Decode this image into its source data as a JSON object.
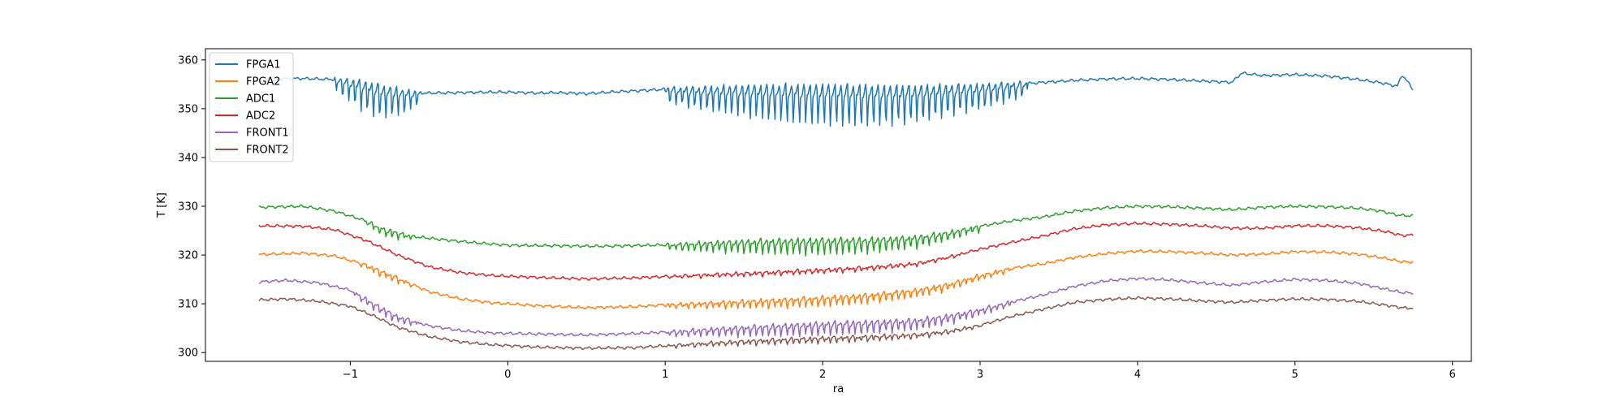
{
  "chart_data": {
    "type": "line",
    "title": "",
    "xlabel": "ra",
    "ylabel": "T [K]",
    "xlim": [
      -1.92,
      6.12
    ],
    "ylim": [
      298.2,
      362.3
    ],
    "xticks": [
      -1,
      0,
      1,
      2,
      3,
      4,
      5,
      6
    ],
    "yticks": [
      300,
      310,
      320,
      330,
      340,
      350,
      360
    ],
    "grid": false,
    "legend_position": "top-left",
    "series": [
      {
        "name": "FPGA1",
        "color": "#1f77b4",
        "x": [
          -1.58,
          -1.45,
          -1.3,
          -1.1,
          -0.95,
          -0.8,
          -0.65,
          -0.5,
          -0.3,
          -0.1,
          0,
          0.2,
          0.3,
          0.5,
          0.7,
          0.9,
          1.0,
          1.2,
          1.5,
          1.8,
          2.0,
          2.2,
          2.4,
          2.6,
          2.8,
          3.0,
          3.2,
          3.4,
          3.6,
          3.8,
          4.0,
          4.2,
          4.4,
          4.6,
          4.66,
          4.8,
          5.0,
          5.2,
          5.4,
          5.55,
          5.65,
          5.68,
          5.75
        ],
        "y": [
          355.7,
          356.1,
          356.2,
          356.0,
          355.2,
          354.0,
          353.3,
          353.2,
          353.3,
          353.4,
          353.4,
          353.2,
          353.3,
          353.1,
          353.5,
          353.8,
          354.0,
          353.9,
          354.0,
          353.9,
          353.9,
          353.8,
          353.7,
          353.8,
          354.1,
          354.4,
          354.9,
          355.4,
          355.8,
          356.1,
          356.2,
          356.0,
          355.7,
          355.4,
          357.3,
          356.8,
          357.0,
          356.7,
          356.0,
          355.3,
          354.6,
          357.0,
          354.0
        ],
        "oscillation": [
          [
            -1.1,
            -0.55,
            4.0
          ],
          [
            1.0,
            3.3,
            5.0
          ]
        ]
      },
      {
        "name": "FPGA2",
        "color": "#ff7f0e",
        "x": [
          -1.58,
          -1.3,
          -1.1,
          -0.9,
          -0.7,
          -0.5,
          -0.3,
          -0.1,
          0.2,
          0.5,
          0.8,
          1.0,
          1.3,
          1.6,
          2.0,
          2.3,
          2.6,
          2.8,
          3.0,
          3.2,
          3.4,
          3.6,
          3.8,
          4.0,
          4.2,
          4.4,
          4.6,
          4.8,
          5.0,
          5.2,
          5.4,
          5.58,
          5.68,
          5.75
        ],
        "y": [
          320.1,
          320.4,
          319.8,
          318.0,
          315.3,
          312.5,
          311.0,
          310.2,
          309.6,
          309.2,
          309.4,
          309.8,
          310.2,
          310.6,
          311.2,
          311.8,
          312.8,
          314.0,
          315.8,
          317.3,
          318.2,
          319.5,
          320.3,
          320.8,
          320.7,
          320.4,
          320.0,
          320.2,
          320.7,
          320.6,
          320.2,
          319.3,
          318.6,
          318.6
        ],
        "oscillation": [
          [
            -0.95,
            -0.6,
            0.8
          ],
          [
            1.0,
            3.2,
            1.2
          ]
        ]
      },
      {
        "name": "ADC1",
        "color": "#2ca02c",
        "x": [
          -1.58,
          -1.3,
          -1.1,
          -0.9,
          -0.8,
          -0.6,
          -0.4,
          -0.2,
          0,
          0.3,
          0.6,
          0.9,
          1.0,
          1.3,
          1.6,
          2.0,
          2.3,
          2.6,
          2.8,
          3.0,
          3.2,
          3.4,
          3.6,
          3.8,
          4.0,
          4.2,
          4.4,
          4.6,
          4.8,
          5.0,
          5.2,
          5.4,
          5.55,
          5.65,
          5.75
        ],
        "y": [
          329.8,
          330.0,
          329.0,
          327.0,
          325.4,
          323.8,
          323.1,
          322.5,
          322.0,
          321.9,
          321.8,
          322.0,
          322.1,
          322.5,
          322.8,
          323.0,
          323.1,
          323.6,
          324.6,
          325.9,
          327.0,
          327.8,
          329.0,
          329.7,
          330.0,
          329.9,
          329.6,
          329.3,
          329.8,
          330.0,
          329.9,
          329.6,
          329.0,
          328.2,
          328.0
        ],
        "oscillation": [
          [
            -0.9,
            -0.6,
            1.0
          ],
          [
            1.0,
            3.0,
            2.0
          ]
        ]
      },
      {
        "name": "ADC2",
        "color": "#d62728",
        "x": [
          -1.58,
          -1.3,
          -1.1,
          -0.9,
          -0.7,
          -0.5,
          -0.3,
          -0.1,
          0.2,
          0.5,
          0.8,
          1.0,
          1.3,
          1.6,
          2.0,
          2.3,
          2.6,
          2.8,
          3.0,
          3.2,
          3.4,
          3.6,
          3.8,
          4.0,
          4.2,
          4.4,
          4.6,
          4.8,
          5.0,
          5.2,
          5.4,
          5.58,
          5.68,
          5.75
        ],
        "y": [
          326.0,
          325.9,
          325.2,
          323.0,
          320.0,
          317.6,
          316.4,
          315.8,
          315.4,
          315.1,
          315.3,
          315.6,
          316.0,
          316.4,
          317.0,
          317.5,
          318.3,
          319.6,
          321.2,
          322.6,
          323.9,
          325.4,
          326.2,
          326.5,
          326.3,
          326.0,
          325.5,
          325.5,
          326.0,
          326.0,
          325.6,
          324.8,
          324.0,
          324.1
        ],
        "oscillation": [
          [
            1.0,
            2.9,
            0.5
          ]
        ]
      },
      {
        "name": "FRONT1",
        "color": "#9467bd",
        "x": [
          -1.58,
          -1.4,
          -1.2,
          -1.0,
          -0.85,
          -0.7,
          -0.5,
          -0.3,
          -0.1,
          0.2,
          0.5,
          0.8,
          1.0,
          1.3,
          1.6,
          2.0,
          2.3,
          2.6,
          2.8,
          3.0,
          3.2,
          3.4,
          3.6,
          3.8,
          4.0,
          4.2,
          4.4,
          4.6,
          4.8,
          5.0,
          5.2,
          5.4,
          5.58,
          5.68,
          5.75
        ],
        "y": [
          314.5,
          314.8,
          314.3,
          312.8,
          310.0,
          307.4,
          305.5,
          304.5,
          304.0,
          303.8,
          303.6,
          303.9,
          304.2,
          304.8,
          305.3,
          305.9,
          306.2,
          306.6,
          307.5,
          308.8,
          310.4,
          311.8,
          313.6,
          314.7,
          315.2,
          314.9,
          314.3,
          313.8,
          314.5,
          315.0,
          314.8,
          314.2,
          313.0,
          312.3,
          312.2
        ],
        "oscillation": [
          [
            -1.0,
            -0.55,
            1.0
          ],
          [
            1.0,
            3.2,
            1.6
          ]
        ]
      },
      {
        "name": "FRONT2",
        "color": "#8c564b",
        "x": [
          -1.58,
          -1.4,
          -1.2,
          -1.0,
          -0.85,
          -0.7,
          -0.5,
          -0.3,
          -0.1,
          0.2,
          0.5,
          0.8,
          1.0,
          1.3,
          1.6,
          2.0,
          2.3,
          2.6,
          2.8,
          3.0,
          3.2,
          3.4,
          3.6,
          3.8,
          4.0,
          4.2,
          4.4,
          4.6,
          4.8,
          5.0,
          5.2,
          5.4,
          5.58,
          5.68,
          5.75
        ],
        "y": [
          310.8,
          311.0,
          310.5,
          309.5,
          307.5,
          305.2,
          303.3,
          302.2,
          301.6,
          301.1,
          300.9,
          301.0,
          301.4,
          302.0,
          302.5,
          303.0,
          303.3,
          303.7,
          304.4,
          305.6,
          307.4,
          308.9,
          310.3,
          310.9,
          311.2,
          311.0,
          310.6,
          310.3,
          310.7,
          311.0,
          310.9,
          310.5,
          309.7,
          309.2,
          309.1
        ],
        "oscillation": [
          [
            1.0,
            3.0,
            0.7
          ]
        ]
      }
    ]
  }
}
